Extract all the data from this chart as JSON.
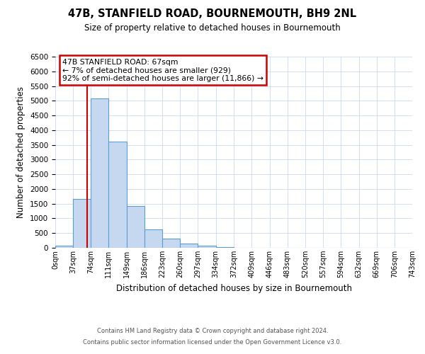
{
  "title": "47B, STANFIELD ROAD, BOURNEMOUTH, BH9 2NL",
  "subtitle": "Size of property relative to detached houses in Bournemouth",
  "xlabel": "Distribution of detached houses by size in Bournemouth",
  "ylabel": "Number of detached properties",
  "bin_edges": [
    0,
    37,
    74,
    111,
    149,
    186,
    223,
    260,
    297,
    334,
    372,
    409,
    446,
    483,
    520,
    557,
    594,
    632,
    669,
    706,
    743
  ],
  "bin_counts": [
    70,
    1650,
    5080,
    3600,
    1420,
    620,
    310,
    150,
    80,
    20,
    10,
    5,
    2,
    0,
    0,
    0,
    0,
    0,
    0,
    0
  ],
  "bar_color": "#c5d8f0",
  "bar_edge_color": "#5a9fd4",
  "property_line_x": 67,
  "property_line_color": "#cc0000",
  "annotation_line1": "47B STANFIELD ROAD: 67sqm",
  "annotation_line2": "← 7% of detached houses are smaller (929)",
  "annotation_line3": "92% of semi-detached houses are larger (11,866) →",
  "annotation_box_color": "#cc0000",
  "annotation_box_bg": "#ffffff",
  "ylim": [
    0,
    6500
  ],
  "yticks": [
    0,
    500,
    1000,
    1500,
    2000,
    2500,
    3000,
    3500,
    4000,
    4500,
    5000,
    5500,
    6000,
    6500
  ],
  "tick_labels": [
    "0sqm",
    "37sqm",
    "74sqm",
    "111sqm",
    "149sqm",
    "186sqm",
    "223sqm",
    "260sqm",
    "297sqm",
    "334sqm",
    "372sqm",
    "409sqm",
    "446sqm",
    "483sqm",
    "520sqm",
    "557sqm",
    "594sqm",
    "632sqm",
    "669sqm",
    "706sqm",
    "743sqm"
  ],
  "footer1": "Contains HM Land Registry data © Crown copyright and database right 2024.",
  "footer2": "Contains public sector information licensed under the Open Government Licence v3.0.",
  "background_color": "#ffffff",
  "grid_color": "#ccdaeb"
}
